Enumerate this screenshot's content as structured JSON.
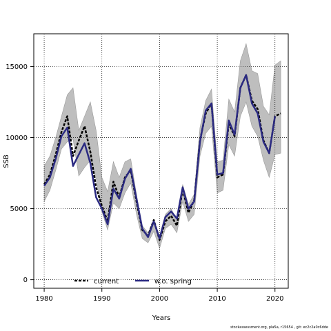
{
  "chart_data": {
    "type": "line",
    "xlabel": "Years",
    "ylabel": "SSB",
    "xlim": [
      1978.2,
      2022.3
    ],
    "ylim": [
      -600,
      17300
    ],
    "xticks": [
      1980,
      1990,
      2000,
      2010,
      2020
    ],
    "yticks": [
      0,
      5000,
      10000,
      15000
    ],
    "grid": true,
    "legend_position": "bottom-center",
    "x": [
      1980,
      1981,
      1982,
      1983,
      1984,
      1985,
      1986,
      1987,
      1988,
      1989,
      1990,
      1991,
      1992,
      1993,
      1994,
      1995,
      1996,
      1997,
      1998,
      1999,
      2000,
      2001,
      2002,
      2003,
      2004,
      2005,
      2006,
      2007,
      2008,
      2009,
      2010,
      2011,
      2012,
      2013,
      2014,
      2015,
      2016,
      2017,
      2018,
      2019,
      2020,
      2021
    ],
    "band_upper": [
      8000,
      8700,
      10000,
      11500,
      13000,
      13500,
      10500,
      11500,
      12500,
      10500,
      7200,
      6200,
      8300,
      7200,
      8300,
      8500,
      6000,
      3800,
      3300,
      4200,
      3100,
      4600,
      5000,
      4200,
      6700,
      5300,
      6000,
      10700,
      12600,
      13400,
      8300,
      8400,
      12700,
      11800,
      15400,
      16600,
      14700,
      14500,
      12200,
      11600,
      15100,
      15400
    ],
    "band_lower": [
      5500,
      6300,
      7700,
      9200,
      9700,
      9900,
      7300,
      7900,
      8400,
      7100,
      4800,
      3500,
      5400,
      5000,
      6100,
      6800,
      4600,
      2900,
      2600,
      3400,
      2200,
      3600,
      3900,
      3300,
      5500,
      4100,
      4600,
      8700,
      10300,
      10800,
      6100,
      6300,
      9500,
      8700,
      11500,
      12500,
      10800,
      10100,
      8400,
      7200,
      8800,
      8900
    ],
    "series": [
      {
        "name": "current",
        "color": "#000000",
        "dash": "dashed",
        "values": [
          6700,
          7400,
          8800,
          10400,
          11500,
          8700,
          9800,
          10800,
          9000,
          6500,
          5200,
          4100,
          6900,
          5800,
          7200,
          7700,
          5500,
          3500,
          3100,
          4200,
          2800,
          4100,
          4500,
          3800,
          6400,
          4700,
          5600,
          9800,
          11700,
          12400,
          7200,
          7400,
          11000,
          10100,
          13500,
          14400,
          12600,
          12000,
          9800,
          8900,
          11500,
          11700
        ],
        "band_upper": [
          8000,
          8700,
          10000,
          11500,
          13000,
          13500,
          10500,
          11500,
          12500,
          10500,
          7200,
          6200,
          8300,
          7200,
          8300,
          8500,
          6000,
          3800,
          3300,
          4200,
          3100,
          4600,
          5000,
          4200,
          6700,
          5300,
          6000,
          10700,
          12600,
          13400,
          8300,
          8400,
          12700,
          11800,
          15400,
          16600,
          14700,
          14500,
          12200,
          11600,
          15100,
          15400
        ],
        "band_lower": [
          5500,
          6300,
          7700,
          9200,
          9700,
          9900,
          7300,
          7900,
          8400,
          7100,
          4800,
          3500,
          5400,
          5000,
          6100,
          6800,
          4600,
          2900,
          2600,
          3400,
          2200,
          3600,
          3900,
          3300,
          5500,
          4100,
          4600,
          8700,
          10300,
          10800,
          6100,
          6300,
          9500,
          8700,
          11500,
          12500,
          10800,
          10100,
          8400,
          7200,
          8800,
          8900
        ]
      },
      {
        "name": "w.o. spring",
        "color": "#2b2a82",
        "dash": "solid",
        "values": [
          6600,
          7200,
          8500,
          10100,
          10700,
          8000,
          8800,
          9600,
          8200,
          5800,
          5000,
          3900,
          6400,
          5700,
          7100,
          7800,
          5700,
          3600,
          3000,
          4100,
          2900,
          4400,
          4800,
          4300,
          6500,
          5000,
          5500,
          9700,
          11900,
          12400,
          7400,
          7500,
          11200,
          10200,
          13500,
          14400,
          12400,
          11700,
          9700,
          8900,
          11500,
          null
        ]
      }
    ]
  },
  "footer": "stockassessment.org, pla5a, r15654 , git: ec2c2a0c6dde"
}
